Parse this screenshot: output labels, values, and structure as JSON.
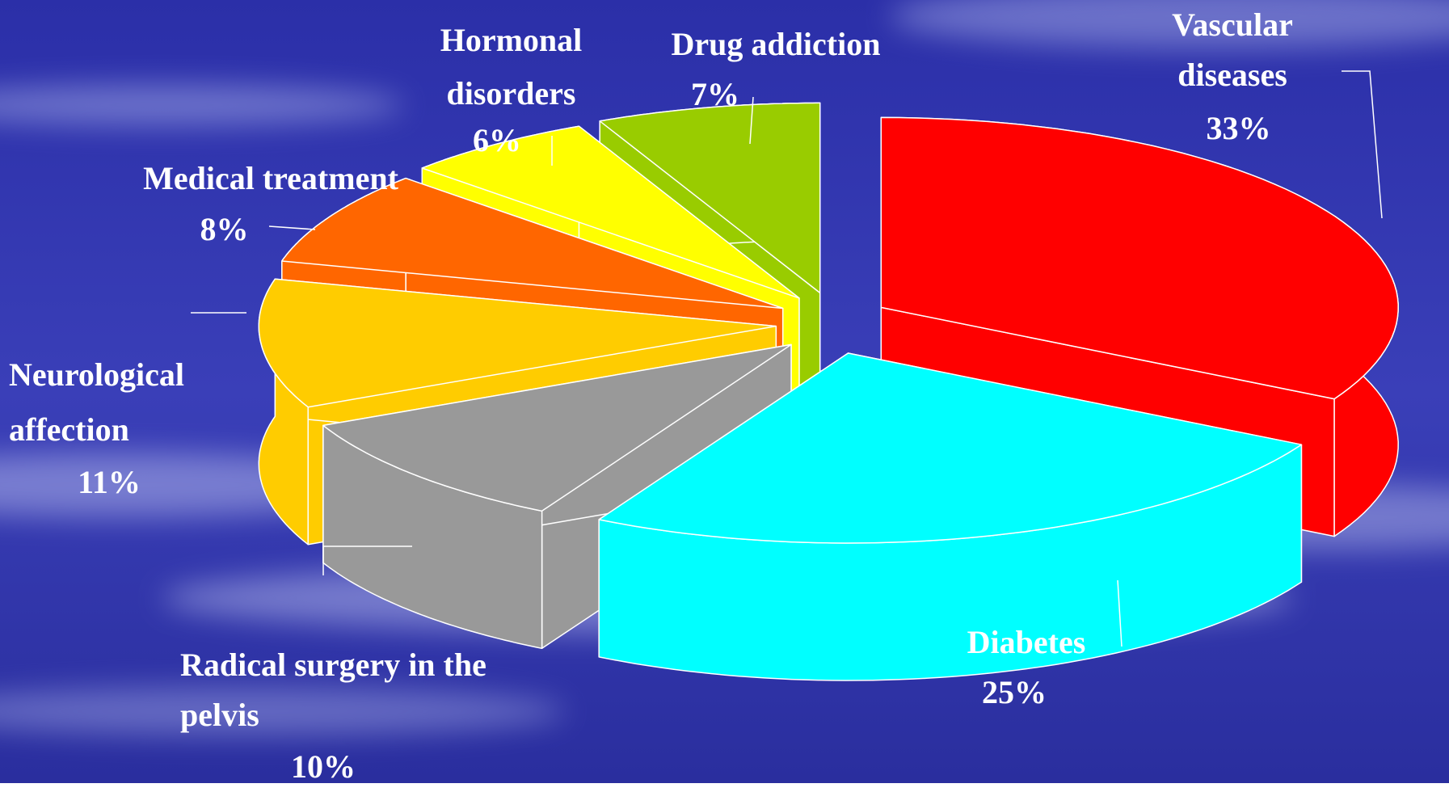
{
  "chart_data": {
    "type": "pie3d",
    "categories": [
      "Vascular diseases",
      "Diabetes",
      "Radical surgery in the pelvis",
      "Neurological affection",
      "Medical treatment",
      "Hormonal disorders",
      "Drug addiction"
    ],
    "values": [
      33,
      25,
      10,
      11,
      8,
      6,
      7
    ],
    "value_labels": [
      "33%",
      "25%",
      "10%",
      "11%",
      "8%",
      "6%",
      "7%"
    ],
    "colors": [
      "#ff0000",
      "#00ffff",
      "#999999",
      "#ffcc00",
      "#ff6600",
      "#ffff00",
      "#99cc00"
    ]
  }
}
